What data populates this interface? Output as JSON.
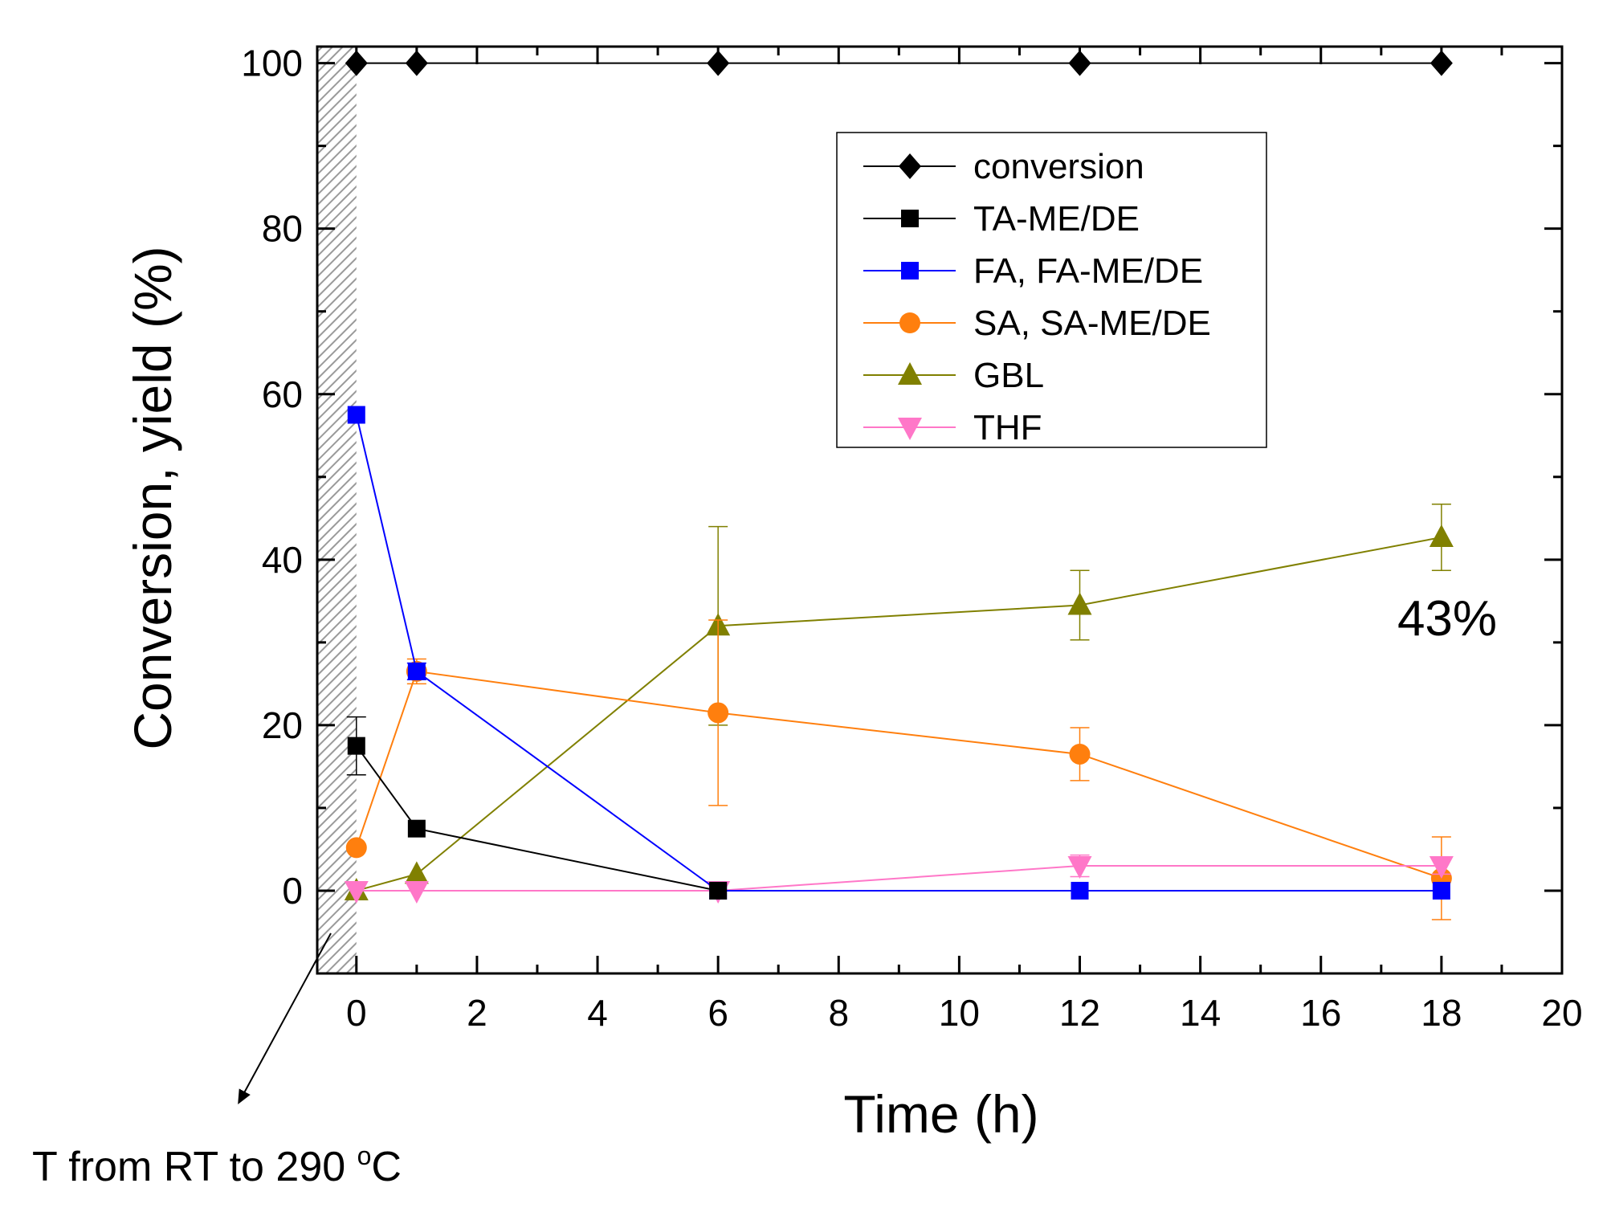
{
  "chart_data": {
    "type": "line",
    "xlabel": "Time (h)",
    "ylabel": "Conversion, yield (%)",
    "xlim": [
      -0.65,
      20
    ],
    "ylim": [
      -10,
      102
    ],
    "x_ticks": [
      0,
      2,
      4,
      6,
      8,
      10,
      12,
      14,
      16,
      18,
      20
    ],
    "y_ticks": [
      0,
      20,
      40,
      60,
      80,
      100
    ],
    "x_tick_labels": [
      "0",
      "2",
      "4",
      "6",
      "8",
      "10",
      "12",
      "14",
      "16",
      "18",
      "20"
    ],
    "y_tick_labels": [
      "0",
      "20",
      "40",
      "60",
      "80",
      "100"
    ],
    "grid": false,
    "legend_position": "top-right",
    "heating_region_x": [
      -0.65,
      0
    ],
    "series": [
      {
        "name": "conversion",
        "color": "#000000",
        "marker": "diamond",
        "x": [
          0,
          1,
          6,
          12,
          18
        ],
        "values": [
          100,
          100,
          100,
          100,
          100
        ],
        "errors": null
      },
      {
        "name": "TA-ME/DE",
        "color": "#000000",
        "marker": "square",
        "x": [
          0,
          1,
          6
        ],
        "values": [
          17.5,
          7.5,
          0
        ],
        "errors": [
          3.5,
          0,
          0
        ]
      },
      {
        "name": "FA, FA-ME/DE",
        "color": "#0000ff",
        "marker": "square",
        "x": [
          0,
          1,
          6,
          12,
          18
        ],
        "values": [
          57.5,
          26.5,
          0,
          0,
          0
        ],
        "errors": [
          0,
          1,
          0,
          0,
          0
        ]
      },
      {
        "name": "SA, SA-ME/DE",
        "color": "#ff7f0e",
        "marker": "circle",
        "x": [
          0,
          1,
          6,
          12,
          18
        ],
        "values": [
          5.2,
          26.5,
          21.5,
          16.5,
          1.5
        ],
        "errors": [
          0,
          1.5,
          11.2,
          3.2,
          5
        ]
      },
      {
        "name": "GBL",
        "color": "#808000",
        "marker": "triangle-up",
        "x": [
          0,
          1,
          6,
          12,
          18
        ],
        "values": [
          0,
          2,
          32,
          34.5,
          42.7
        ],
        "errors": [
          0,
          0,
          12,
          4.2,
          4
        ]
      },
      {
        "name": "THF",
        "color": "#ff77c8",
        "marker": "triangle-down",
        "x": [
          0,
          1,
          6,
          12,
          18
        ],
        "values": [
          0,
          0,
          0,
          3,
          3
        ],
        "errors": [
          0,
          0,
          0,
          1.3,
          1
        ]
      }
    ],
    "annotations": {
      "value_label": "43%",
      "heating_note": "T from RT to 290 ",
      "heating_note_sup": "o",
      "heating_note_unit": "C"
    }
  }
}
